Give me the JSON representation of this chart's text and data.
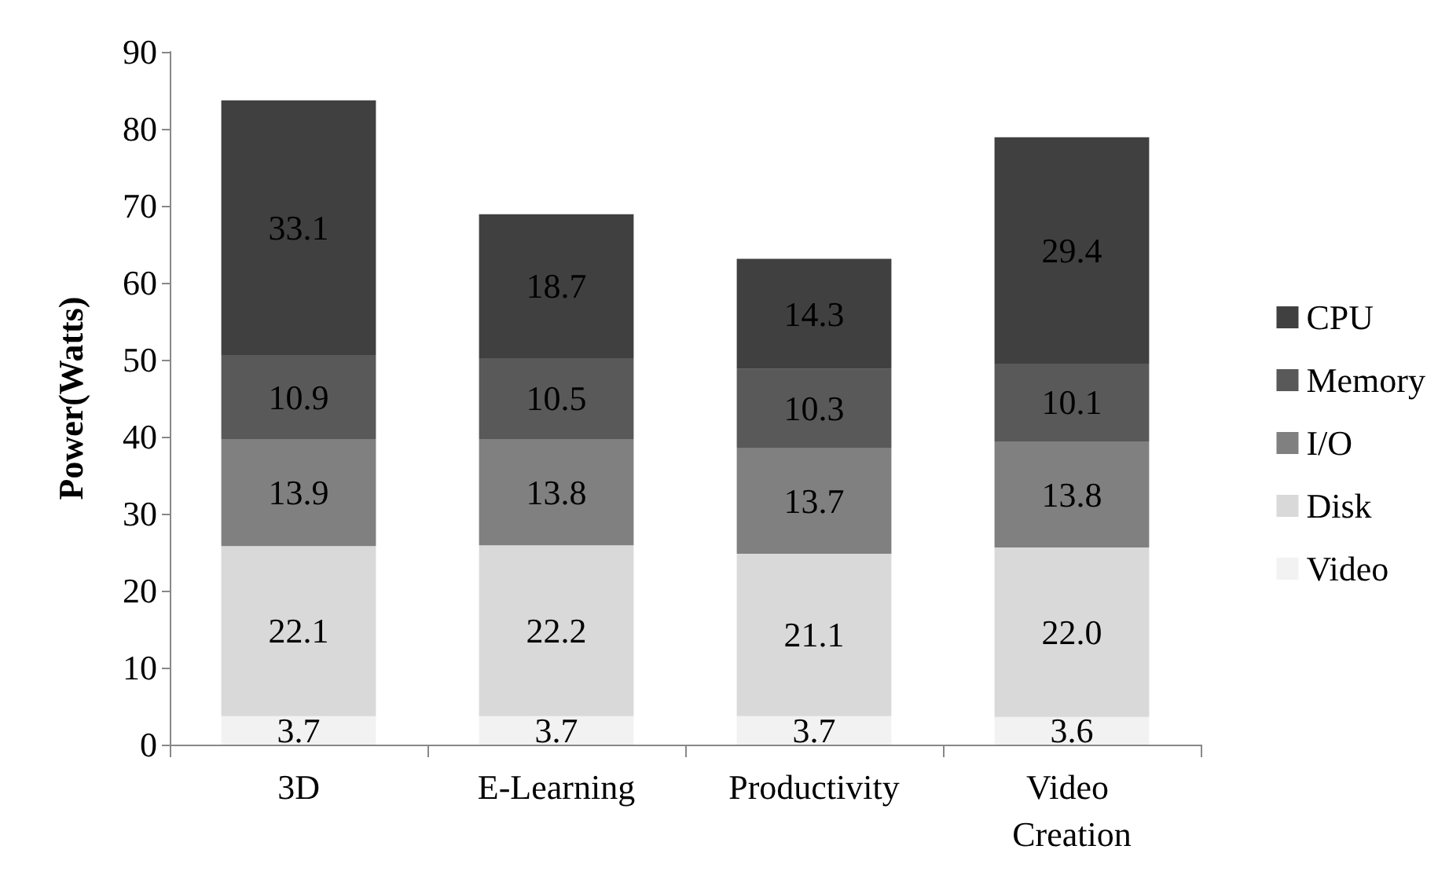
{
  "chart_data": {
    "type": "bar",
    "stacked": true,
    "ylabel": "Power(Watts)",
    "categories": [
      "3D",
      "E-Learning",
      "Productivity",
      "Video Creation"
    ],
    "series": [
      {
        "name": "Video",
        "color": "#f2f2f2",
        "values": [
          3.7,
          3.7,
          3.7,
          3.6
        ],
        "value_labels": [
          "3.7",
          "3.7",
          "3.7",
          "3.6"
        ]
      },
      {
        "name": "Disk",
        "color": "#d9d9d9",
        "values": [
          22.1,
          22.2,
          21.1,
          22.0
        ],
        "value_labels": [
          "22.1",
          "22.2",
          "21.1",
          "22.0"
        ]
      },
      {
        "name": "I/O",
        "color": "#808080",
        "values": [
          13.9,
          13.8,
          13.7,
          13.8
        ],
        "value_labels": [
          "13.9",
          "13.8",
          "13.7",
          "13.8"
        ]
      },
      {
        "name": "Memory",
        "color": "#595959",
        "values": [
          10.9,
          10.5,
          10.3,
          10.1
        ],
        "value_labels": [
          "10.9",
          "10.5",
          "10.3",
          "10.1"
        ]
      },
      {
        "name": "CPU",
        "color": "#404040",
        "values": [
          33.1,
          18.7,
          14.3,
          29.4
        ],
        "value_labels": [
          "33.1",
          "18.7",
          "14.3",
          "29.4"
        ]
      }
    ],
    "ylim": [
      0,
      90
    ],
    "yticks": [
      0,
      10,
      20,
      30,
      40,
      50,
      60,
      70,
      80,
      90
    ],
    "grid": false,
    "legend": "right"
  }
}
